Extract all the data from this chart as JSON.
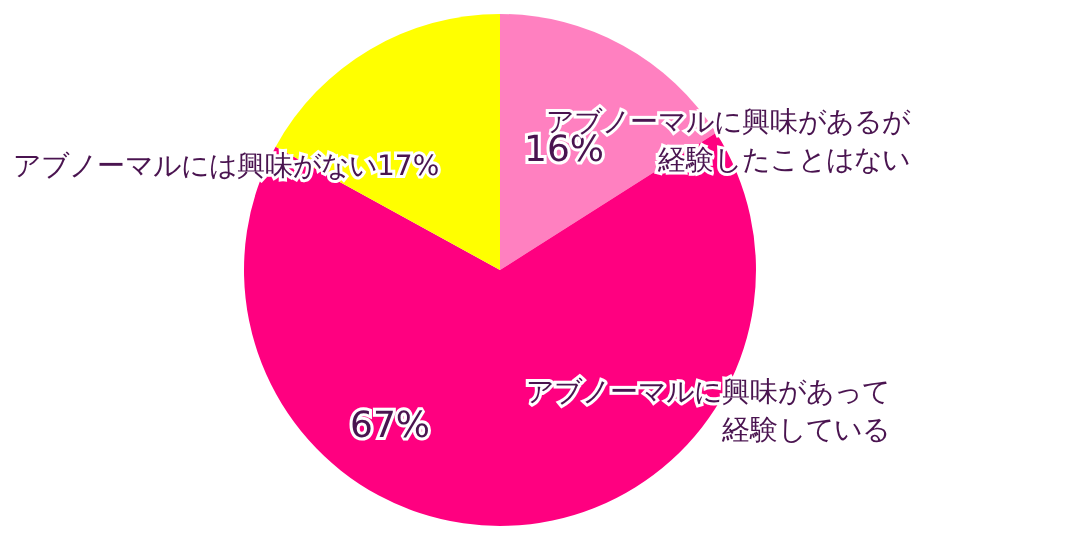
{
  "chart_data": {
    "type": "pie",
    "categories": [
      "アブノーマルに興味があるが経験したことはない",
      "アブノーマルに興味があって経験している",
      "アブノーマルには興味がない"
    ],
    "values": [
      16,
      67,
      17
    ],
    "colors": [
      "#ff80c0",
      "#ff0080",
      "#ffff00"
    ],
    "value_labels": [
      "16%",
      "67%",
      "17%"
    ]
  }
}
